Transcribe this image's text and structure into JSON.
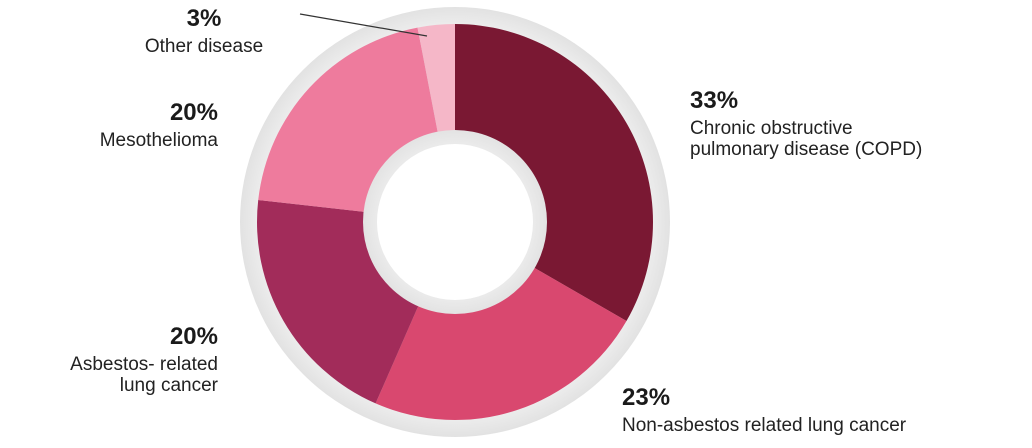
{
  "chart_data": {
    "type": "pie",
    "subtype": "donut",
    "slices": [
      {
        "label": "Chronic obstructive\npulmonary disease (COPD)",
        "value": 33,
        "value_label": "33%",
        "color": "#7a1833"
      },
      {
        "label": "Non-asbestos related lung cancer",
        "value": 23,
        "value_label": "23%",
        "color": "#d9486f"
      },
      {
        "label": "Asbestos- related\nlung cancer",
        "value": 20,
        "value_label": "20%",
        "color": "#a22c5a"
      },
      {
        "label": "Mesothelioma",
        "value": 20,
        "value_label": "20%",
        "color": "#ee7b9d"
      },
      {
        "label": "Other disease",
        "value": 3,
        "value_label": "3%",
        "color": "#f5b7c8"
      }
    ],
    "ring_color": "#e1e1e1",
    "hole_color": "#ffffff",
    "start_angle": "12 o'clock",
    "direction": "clockwise",
    "legend": "none"
  }
}
